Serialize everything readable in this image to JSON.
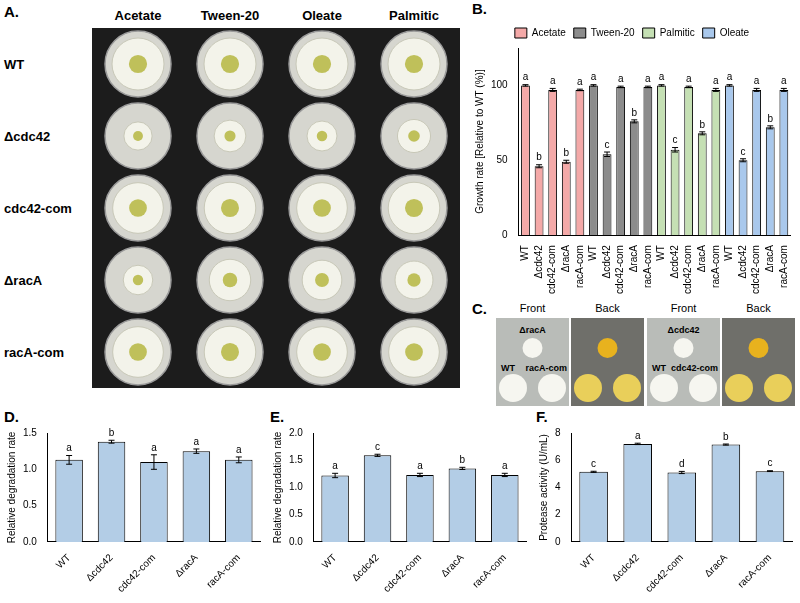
{
  "chart_data": [
    {
      "panel": "B.",
      "type": "bar",
      "y_label": "Growth rate [Relative to WT (%)]",
      "categories": [
        "WT",
        "Δcdc42",
        "cdc42-com",
        "ΔracA",
        "racA-com",
        "WT",
        "Δcdc42",
        "cdc42-com",
        "ΔracA",
        "racA-com",
        "WT",
        "Δcdc42",
        "cdc42-com",
        "ΔracA",
        "racA-com",
        "WT",
        "Δcdc42",
        "cdc42-com",
        "ΔracA",
        "racA-com"
      ],
      "series": [
        {
          "name": "Acetate",
          "color": "#f4a9a8",
          "values": [
            100,
            46,
            97,
            49,
            97,
            null,
            null,
            null,
            null,
            null,
            null,
            null,
            null,
            null,
            null,
            null,
            null,
            null,
            null,
            null
          ],
          "errors": [
            0.5,
            1,
            1,
            1,
            0.5,
            null,
            null,
            null,
            null,
            null,
            null,
            null,
            null,
            null,
            null,
            null,
            null,
            null,
            null,
            null
          ],
          "letters": [
            "a",
            "b",
            "a",
            "b",
            "a",
            null,
            null,
            null,
            null,
            null,
            null,
            null,
            null,
            null,
            null,
            null,
            null,
            null,
            null,
            null
          ]
        },
        {
          "name": "Tween-20",
          "color": "#8c8c8c",
          "values": [
            null,
            null,
            null,
            null,
            null,
            100,
            54,
            99,
            76,
            99,
            null,
            null,
            null,
            null,
            null,
            null,
            null,
            null,
            null,
            null
          ],
          "errors": [
            null,
            null,
            null,
            null,
            null,
            0.5,
            1.5,
            0.5,
            1,
            0.5,
            null,
            null,
            null,
            null,
            null,
            null,
            null,
            null,
            null,
            null
          ],
          "letters": [
            null,
            null,
            null,
            null,
            null,
            "a",
            "c",
            "a",
            "b",
            "a",
            null,
            null,
            null,
            null,
            null,
            null,
            null,
            null,
            null,
            null
          ]
        },
        {
          "name": "Palmitic",
          "color": "#c5e0b4",
          "values": [
            null,
            null,
            null,
            null,
            null,
            null,
            null,
            null,
            null,
            null,
            100,
            57,
            99,
            68,
            97,
            null,
            null,
            null,
            null,
            null
          ],
          "errors": [
            null,
            null,
            null,
            null,
            null,
            null,
            null,
            null,
            null,
            null,
            0.5,
            1.5,
            0.5,
            1,
            1,
            null,
            null,
            null,
            null,
            null
          ],
          "letters": [
            null,
            null,
            null,
            null,
            null,
            null,
            null,
            null,
            null,
            null,
            "a",
            "c",
            "a",
            "b",
            "a",
            null,
            null,
            null,
            null,
            null
          ]
        },
        {
          "name": "Oleate",
          "color": "#a9c8ec",
          "values": [
            null,
            null,
            null,
            null,
            null,
            null,
            null,
            null,
            null,
            null,
            null,
            null,
            null,
            null,
            null,
            100,
            50,
            97,
            72,
            97
          ],
          "errors": [
            null,
            null,
            null,
            null,
            null,
            null,
            null,
            null,
            null,
            null,
            null,
            null,
            null,
            null,
            null,
            0.5,
            1,
            1,
            1,
            1
          ],
          "letters": [
            null,
            null,
            null,
            null,
            null,
            null,
            null,
            null,
            null,
            null,
            null,
            null,
            null,
            null,
            null,
            "a",
            "c",
            "a",
            "b",
            "a"
          ]
        }
      ],
      "ylim": [
        0,
        125
      ],
      "yticks": [
        0,
        50,
        100
      ],
      "grid": false,
      "legend": "top"
    },
    {
      "panel": "D.",
      "type": "bar",
      "y_label": "Relative degradation rate",
      "categories": [
        "WT",
        "Δcdc42",
        "cdc42-com",
        "ΔracA",
        "racA-com"
      ],
      "values": [
        1.13,
        1.38,
        1.1,
        1.25,
        1.13
      ],
      "errors": [
        0.06,
        0.02,
        0.1,
        0.03,
        0.04
      ],
      "letters": [
        "a",
        "b",
        "a",
        "a",
        "a"
      ],
      "color": "#b3cde6",
      "ylim": [
        0,
        1.5
      ],
      "yticks": [
        {
          "value": 0,
          "label": "0.0"
        },
        {
          "value": 0.5,
          "label": "0.5"
        },
        {
          "value": 1,
          "label": "1.0"
        },
        {
          "value": 1.5,
          "label": "1.5"
        }
      ],
      "grid": false
    },
    {
      "panel": "E.",
      "type": "bar",
      "y_label": "Relative degradation rate",
      "categories": [
        "WT",
        "Δcdc42",
        "cdc42-com",
        "ΔracA",
        "racA-com"
      ],
      "values": [
        1.22,
        1.59,
        1.23,
        1.35,
        1.23
      ],
      "errors": [
        0.04,
        0.02,
        0.03,
        0.02,
        0.03
      ],
      "letters": [
        "a",
        "c",
        "a",
        "b",
        "a"
      ],
      "color": "#b3cde6",
      "ylim": [
        0,
        2
      ],
      "yticks": [
        {
          "value": 0,
          "label": "0.0"
        },
        {
          "value": 0.5,
          "label": "0.5"
        },
        {
          "value": 1,
          "label": "1.0"
        },
        {
          "value": 1.5,
          "label": "1.5"
        },
        {
          "value": 2,
          "label": "2.0"
        }
      ],
      "grid": false
    },
    {
      "panel": "F.",
      "type": "bar",
      "y_label": "Protease activity (U/mL)",
      "categories": [
        "WT",
        "Δcdc42",
        "cdc42-com",
        "ΔracA",
        "racA-com"
      ],
      "values": [
        5.15,
        7.2,
        5.1,
        7.15,
        5.2
      ],
      "errors": [
        0.04,
        0.05,
        0.08,
        0.04,
        0.03
      ],
      "letters": [
        "c",
        "a",
        "d",
        "b",
        "c"
      ],
      "color": "#b3cde6",
      "ylim": [
        0,
        8
      ],
      "yticks": [
        0,
        2,
        4,
        6,
        8
      ],
      "grid": false
    }
  ],
  "plates": {
    "panel": "A.",
    "columns": [
      "Acetate",
      "Tween-20",
      "Oleate",
      "Palmitic"
    ],
    "rows": [
      "WT",
      "Δcdc42",
      "cdc42-com",
      "ΔracA",
      "racA-com"
    ]
  },
  "photos": {
    "panel": "C.",
    "groups": [
      {
        "front": "Front",
        "back": "Back",
        "mutant": "ΔracA",
        "wt": "WT",
        "com": "racA-com"
      },
      {
        "front": "Front",
        "back": "Back",
        "mutant": "Δcdc42",
        "wt": "WT",
        "com": "cdc42-com"
      }
    ]
  }
}
